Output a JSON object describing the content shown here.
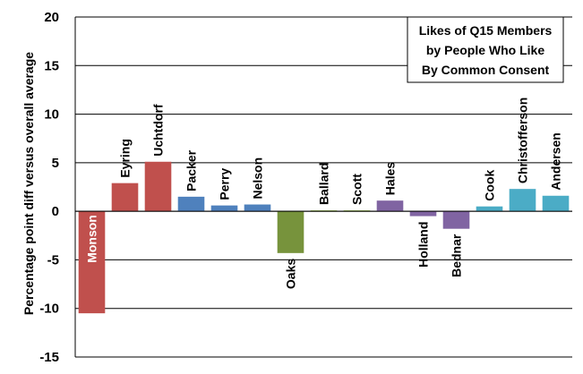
{
  "chart_data": {
    "type": "bar",
    "title": [
      "Likes of Q15 Members",
      "by People Who Like",
      "By Common Consent"
    ],
    "ylabel": "Percentage point diff versus overall average",
    "xlabel": "",
    "ylim": [
      -15,
      20
    ],
    "yticks": [
      -15,
      -10,
      -5,
      0,
      5,
      10,
      15,
      20
    ],
    "grid": true,
    "legend": "none",
    "categories": [
      "Monson",
      "Eyring",
      "Uchtdorf",
      "Packer",
      "Perry",
      "Nelson",
      "Oaks",
      "Ballard",
      "Scott",
      "Hales",
      "Holland",
      "Bednar",
      "Cook",
      "Christofferson",
      "Andersen"
    ],
    "values": [
      -10.5,
      2.9,
      5.1,
      1.5,
      0.6,
      0.7,
      -4.3,
      0.1,
      0.1,
      1.1,
      -0.5,
      -1.8,
      0.5,
      2.3,
      1.6
    ],
    "colors": [
      "#c0504d",
      "#c0504d",
      "#c0504d",
      "#4f81bd",
      "#4f81bd",
      "#4f81bd",
      "#77933c",
      "#9bbb59",
      "#9bbb59",
      "#8064a2",
      "#8064a2",
      "#8064a2",
      "#4bacc6",
      "#4bacc6",
      "#4bacc6"
    ],
    "label_inside": [
      "Monson"
    ]
  }
}
